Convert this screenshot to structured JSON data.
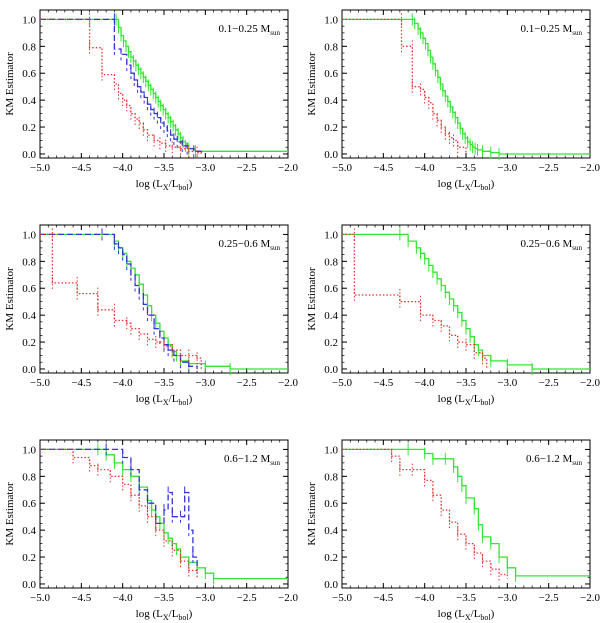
{
  "figure": {
    "panel_count": 6,
    "layout": "3 rows x 2 columns"
  },
  "colors": {
    "green": "#33e633",
    "blue": "#3333d9",
    "red": "#e63333",
    "axes": "#000000"
  },
  "chart_data": [
    {
      "type": "line",
      "panel": "row1-left",
      "annotation": "0.1−0.25 M",
      "annotation_sub": "sun",
      "xlabel": "log (L",
      "xlabel_sub1": "X",
      "xlabel_mid": "/L",
      "xlabel_sub2": "bol",
      "xlabel_end": ")",
      "ylabel": "KM Estimator",
      "xlim": [
        -5.0,
        -2.0
      ],
      "ylim": [
        -0.03,
        1.07
      ],
      "xticks": [
        "−5.0",
        "−4.5",
        "−4.0",
        "−3.5",
        "−3.0",
        "−2.5",
        "−2.0"
      ],
      "xtick_values": [
        -5.0,
        -4.5,
        -4.0,
        -3.5,
        -3.0,
        -2.5,
        -2.0
      ],
      "yticks": [
        "0.0",
        "0.2",
        "0.4",
        "0.6",
        "0.8",
        "1.0"
      ],
      "ytick_values": [
        0.0,
        0.2,
        0.4,
        0.6,
        0.8,
        1.0
      ],
      "series": [
        {
          "name": "green",
          "style": "solid",
          "color": "green",
          "x": [
            -5.0,
            -4.08,
            -4.05,
            -4.02,
            -3.99,
            -3.96,
            -3.93,
            -3.9,
            -3.87,
            -3.84,
            -3.81,
            -3.78,
            -3.75,
            -3.72,
            -3.69,
            -3.66,
            -3.63,
            -3.6,
            -3.57,
            -3.54,
            -3.51,
            -3.48,
            -3.45,
            -3.42,
            -3.39,
            -3.36,
            -3.33,
            -3.3,
            -3.27,
            -3.24,
            -3.2,
            -3.12,
            -2.0
          ],
          "y": [
            1.0,
            1.0,
            0.94,
            0.88,
            0.84,
            0.8,
            0.76,
            0.72,
            0.69,
            0.66,
            0.63,
            0.6,
            0.57,
            0.54,
            0.51,
            0.48,
            0.45,
            0.42,
            0.39,
            0.36,
            0.33,
            0.3,
            0.27,
            0.24,
            0.21,
            0.18,
            0.15,
            0.12,
            0.09,
            0.06,
            0.04,
            0.02,
            0.02
          ]
        },
        {
          "name": "blue",
          "style": "dashed",
          "color": "blue",
          "x": [
            -5.0,
            -4.1,
            -4.1,
            -4.02,
            -3.95,
            -3.9,
            -3.86,
            -3.82,
            -3.78,
            -3.74,
            -3.7,
            -3.66,
            -3.62,
            -3.58,
            -3.54,
            -3.5,
            -3.46,
            -3.42,
            -3.38,
            -3.34,
            -3.28,
            -3.22,
            -3.14,
            -3.05
          ],
          "y": [
            1.0,
            1.0,
            0.78,
            0.74,
            0.66,
            0.6,
            0.55,
            0.5,
            0.46,
            0.42,
            0.37,
            0.33,
            0.3,
            0.27,
            0.23,
            0.2,
            0.17,
            0.14,
            0.11,
            0.09,
            0.06,
            0.04,
            0.02,
            0.0
          ]
        },
        {
          "name": "red",
          "style": "dotted",
          "color": "red",
          "x": [
            -5.0,
            -4.4,
            -4.4,
            -4.25,
            -4.1,
            -4.05,
            -4.0,
            -3.95,
            -3.9,
            -3.85,
            -3.8,
            -3.75,
            -3.7,
            -3.62,
            -3.55,
            -3.48,
            -3.4,
            -3.3,
            -3.2,
            -3.1,
            -3.05
          ],
          "y": [
            1.0,
            1.0,
            0.79,
            0.59,
            0.52,
            0.45,
            0.4,
            0.36,
            0.3,
            0.26,
            0.23,
            0.18,
            0.14,
            0.1,
            0.08,
            0.06,
            0.05,
            0.04,
            0.02,
            0.01,
            0.0
          ]
        }
      ]
    },
    {
      "type": "line",
      "panel": "row1-right",
      "annotation": "0.1−0.25 M",
      "annotation_sub": "sun",
      "xlabel": "log (L",
      "xlabel_sub1": "X",
      "xlabel_mid": "/L",
      "xlabel_sub2": "bol",
      "xlabel_end": ")",
      "ylabel": "KM Estimator",
      "xlim": [
        -5.0,
        -2.0
      ],
      "ylim": [
        -0.03,
        1.07
      ],
      "xticks": [
        "−5.0",
        "−4.5",
        "−4.0",
        "−3.5",
        "−3.0",
        "−2.5",
        "−2.0"
      ],
      "xtick_values": [
        -5.0,
        -4.5,
        -4.0,
        -3.5,
        -3.0,
        -2.5,
        -2.0
      ],
      "yticks": [
        "0.0",
        "0.2",
        "0.4",
        "0.6",
        "0.8",
        "1.0"
      ],
      "ytick_values": [
        0.0,
        0.2,
        0.4,
        0.6,
        0.8,
        1.0
      ],
      "series": [
        {
          "name": "green",
          "style": "solid",
          "color": "green",
          "x": [
            -5.0,
            -4.15,
            -4.12,
            -4.08,
            -4.05,
            -4.02,
            -3.99,
            -3.96,
            -3.93,
            -3.9,
            -3.87,
            -3.84,
            -3.81,
            -3.78,
            -3.75,
            -3.72,
            -3.69,
            -3.66,
            -3.63,
            -3.6,
            -3.57,
            -3.54,
            -3.51,
            -3.48,
            -3.45,
            -3.42,
            -3.39,
            -3.36,
            -3.3,
            -3.2,
            -3.1,
            -2.0
          ],
          "y": [
            1.0,
            1.0,
            0.97,
            0.93,
            0.9,
            0.86,
            0.82,
            0.77,
            0.72,
            0.67,
            0.62,
            0.57,
            0.52,
            0.47,
            0.43,
            0.39,
            0.35,
            0.31,
            0.27,
            0.23,
            0.19,
            0.15,
            0.12,
            0.09,
            0.07,
            0.05,
            0.04,
            0.03,
            0.02,
            0.01,
            0.0,
            0.0
          ]
        },
        {
          "name": "red",
          "style": "dotted",
          "color": "red",
          "x": [
            -5.0,
            -4.28,
            -4.28,
            -4.15,
            -4.15,
            -4.05,
            -4.0,
            -3.95,
            -3.9,
            -3.85,
            -3.8,
            -3.75,
            -3.7,
            -3.65,
            -3.6,
            -3.5
          ],
          "y": [
            1.0,
            1.0,
            0.8,
            0.8,
            0.5,
            0.48,
            0.42,
            0.38,
            0.3,
            0.25,
            0.2,
            0.15,
            0.12,
            0.1,
            0.05,
            0.0
          ]
        }
      ]
    },
    {
      "type": "line",
      "panel": "row2-left",
      "annotation": "0.25−0.6 M",
      "annotation_sub": "sun",
      "xlabel": "log (L",
      "xlabel_sub1": "X",
      "xlabel_mid": "/L",
      "xlabel_sub2": "bol",
      "xlabel_end": ")",
      "ylabel": "KM Estimator",
      "xlim": [
        -5.0,
        -2.0
      ],
      "ylim": [
        -0.03,
        1.07
      ],
      "xticks": [
        "−5.0",
        "−4.5",
        "−4.0",
        "−3.5",
        "−3.0",
        "−2.5",
        "−2.0"
      ],
      "xtick_values": [
        -5.0,
        -4.5,
        -4.0,
        -3.5,
        -3.0,
        -2.5,
        -2.0
      ],
      "yticks": [
        "0.0",
        "0.2",
        "0.4",
        "0.6",
        "0.8",
        "1.0"
      ],
      "ytick_values": [
        0.0,
        0.2,
        0.4,
        0.6,
        0.8,
        1.0
      ],
      "series": [
        {
          "name": "green",
          "style": "solid",
          "color": "green",
          "x": [
            -5.0,
            -4.25,
            -4.1,
            -4.05,
            -4.0,
            -3.95,
            -3.9,
            -3.85,
            -3.8,
            -3.75,
            -3.7,
            -3.65,
            -3.6,
            -3.55,
            -3.5,
            -3.45,
            -3.4,
            -3.35,
            -3.3,
            -3.2,
            -3.0,
            -2.7,
            -2.0
          ],
          "y": [
            1.0,
            1.0,
            0.95,
            0.9,
            0.86,
            0.8,
            0.75,
            0.7,
            0.63,
            0.55,
            0.47,
            0.4,
            0.34,
            0.28,
            0.23,
            0.18,
            0.13,
            0.1,
            0.06,
            0.04,
            0.02,
            0.0,
            0.0
          ]
        },
        {
          "name": "blue",
          "style": "dashed",
          "color": "blue",
          "x": [
            -5.0,
            -4.25,
            -4.1,
            -4.05,
            -4.0,
            -3.95,
            -3.9,
            -3.85,
            -3.8,
            -3.75,
            -3.7,
            -3.62,
            -3.55,
            -3.5,
            -3.45,
            -3.38,
            -3.3,
            -3.2,
            -3.1
          ],
          "y": [
            1.0,
            1.0,
            0.93,
            0.9,
            0.85,
            0.78,
            0.7,
            0.62,
            0.56,
            0.48,
            0.4,
            0.3,
            0.23,
            0.18,
            0.14,
            0.1,
            0.05,
            0.02,
            0.0
          ]
        },
        {
          "name": "red",
          "style": "dotted",
          "color": "red",
          "x": [
            -5.0,
            -4.85,
            -4.85,
            -4.55,
            -4.55,
            -4.3,
            -4.3,
            -4.1,
            -4.1,
            -3.95,
            -3.9,
            -3.8,
            -3.7,
            -3.6,
            -3.5,
            -3.4,
            -3.3,
            -3.2,
            -3.1,
            -3.05
          ],
          "y": [
            1.0,
            1.0,
            0.64,
            0.64,
            0.56,
            0.56,
            0.44,
            0.44,
            0.36,
            0.34,
            0.3,
            0.26,
            0.22,
            0.2,
            0.17,
            0.14,
            0.1,
            0.1,
            0.08,
            0.0
          ]
        }
      ]
    },
    {
      "type": "line",
      "panel": "row2-right",
      "annotation": "0.25−0.6 M",
      "annotation_sub": "sun",
      "xlabel": "log (L",
      "xlabel_sub1": "X",
      "xlabel_mid": "/L",
      "xlabel_sub2": "bol",
      "xlabel_end": ")",
      "ylabel": "KM Estimator",
      "xlim": [
        -5.0,
        -2.0
      ],
      "ylim": [
        -0.03,
        1.07
      ],
      "xticks": [
        "−5.0",
        "−4.5",
        "−4.0",
        "−3.5",
        "−3.0",
        "−2.5",
        "−2.0"
      ],
      "xtick_values": [
        -5.0,
        -4.5,
        -4.0,
        -3.5,
        -3.0,
        -2.5,
        -2.0
      ],
      "yticks": [
        "0.0",
        "0.2",
        "0.4",
        "0.6",
        "0.8",
        "1.0"
      ],
      "ytick_values": [
        0.0,
        0.2,
        0.4,
        0.6,
        0.8,
        1.0
      ],
      "series": [
        {
          "name": "green",
          "style": "solid",
          "color": "green",
          "x": [
            -5.0,
            -4.3,
            -4.2,
            -4.1,
            -4.05,
            -4.0,
            -3.95,
            -3.9,
            -3.85,
            -3.8,
            -3.75,
            -3.7,
            -3.65,
            -3.6,
            -3.55,
            -3.5,
            -3.45,
            -3.4,
            -3.35,
            -3.3,
            -3.2,
            -3.0,
            -2.7,
            -2.0
          ],
          "y": [
            1.0,
            1.0,
            0.95,
            0.9,
            0.86,
            0.82,
            0.77,
            0.72,
            0.67,
            0.62,
            0.57,
            0.52,
            0.47,
            0.42,
            0.36,
            0.3,
            0.24,
            0.18,
            0.14,
            0.1,
            0.06,
            0.03,
            0.0,
            0.0
          ]
        },
        {
          "name": "red",
          "style": "dotted",
          "color": "red",
          "x": [
            -5.0,
            -4.85,
            -4.85,
            -4.3,
            -4.3,
            -4.05,
            -4.05,
            -3.9,
            -3.8,
            -3.7,
            -3.6,
            -3.5,
            -3.4,
            -3.3,
            -3.25
          ],
          "y": [
            1.0,
            1.0,
            0.55,
            0.55,
            0.5,
            0.5,
            0.4,
            0.36,
            0.32,
            0.25,
            0.2,
            0.18,
            0.12,
            0.08,
            0.0
          ]
        }
      ]
    },
    {
      "type": "line",
      "panel": "row3-left",
      "annotation": "0.6−1.2 M",
      "annotation_sub": "sun",
      "xlabel": "log (L",
      "xlabel_sub1": "X",
      "xlabel_mid": "/L",
      "xlabel_sub2": "bol",
      "xlabel_end": ")",
      "ylabel": "KM Estimator",
      "xlim": [
        -5.0,
        -2.0
      ],
      "ylim": [
        -0.03,
        1.07
      ],
      "xticks": [
        "−5.0",
        "−4.5",
        "−4.0",
        "−3.5",
        "−3.0",
        "−2.5",
        "−2.0"
      ],
      "xtick_values": [
        -5.0,
        -4.5,
        -4.0,
        -3.5,
        -3.0,
        -2.5,
        -2.0
      ],
      "yticks": [
        "0.0",
        "0.2",
        "0.4",
        "0.6",
        "0.8",
        "1.0"
      ],
      "ytick_values": [
        0.0,
        0.2,
        0.4,
        0.6,
        0.8,
        1.0
      ],
      "series": [
        {
          "name": "green",
          "style": "solid",
          "color": "green",
          "x": [
            -5.0,
            -4.3,
            -4.2,
            -4.1,
            -4.0,
            -3.9,
            -3.8,
            -3.7,
            -3.65,
            -3.6,
            -3.55,
            -3.5,
            -3.45,
            -3.4,
            -3.35,
            -3.3,
            -3.2,
            -3.1,
            -3.0,
            -2.9,
            -2.0
          ],
          "y": [
            1.0,
            1.0,
            0.96,
            0.9,
            0.85,
            0.8,
            0.72,
            0.62,
            0.55,
            0.5,
            0.45,
            0.38,
            0.34,
            0.3,
            0.26,
            0.2,
            0.16,
            0.12,
            0.08,
            0.04,
            0.04
          ]
        },
        {
          "name": "blue",
          "style": "dashed",
          "color": "blue",
          "x": [
            -5.0,
            -4.2,
            -4.0,
            -3.9,
            -3.8,
            -3.7,
            -3.6,
            -3.5,
            -3.45,
            -3.4,
            -3.3,
            -3.25,
            -3.2,
            -3.15,
            -3.1
          ],
          "y": [
            1.0,
            1.0,
            0.94,
            0.85,
            0.7,
            0.6,
            0.45,
            0.55,
            0.68,
            0.5,
            0.5,
            0.68,
            0.4,
            0.2,
            0.1
          ]
        },
        {
          "name": "red",
          "style": "dotted",
          "color": "red",
          "x": [
            -5.0,
            -4.6,
            -4.4,
            -4.3,
            -4.15,
            -4.0,
            -3.9,
            -3.8,
            -3.7,
            -3.6,
            -3.5,
            -3.4,
            -3.3,
            -3.2,
            -3.1
          ],
          "y": [
            1.0,
            0.94,
            0.88,
            0.85,
            0.8,
            0.74,
            0.66,
            0.58,
            0.5,
            0.4,
            0.32,
            0.25,
            0.17,
            0.1,
            0.04
          ]
        }
      ]
    },
    {
      "type": "line",
      "panel": "row3-right",
      "annotation": "0.6−1.2 M",
      "annotation_sub": "sun",
      "xlabel": "log (L",
      "xlabel_sub1": "X",
      "xlabel_mid": "/L",
      "xlabel_sub2": "bol",
      "xlabel_end": ")",
      "ylabel": "KM Estimator",
      "xlim": [
        -5.0,
        -2.0
      ],
      "ylim": [
        -0.03,
        1.07
      ],
      "xticks": [
        "−5.0",
        "−4.5",
        "−4.0",
        "−3.5",
        "−3.0",
        "−2.5",
        "−2.0"
      ],
      "xtick_values": [
        -5.0,
        -4.5,
        -4.0,
        -3.5,
        -3.0,
        -2.5,
        -2.0
      ],
      "yticks": [
        "0.0",
        "0.2",
        "0.4",
        "0.6",
        "0.8",
        "1.0"
      ],
      "ytick_values": [
        0.0,
        0.2,
        0.4,
        0.6,
        0.8,
        1.0
      ],
      "series": [
        {
          "name": "green",
          "style": "solid",
          "color": "green",
          "x": [
            -5.0,
            -4.2,
            -4.0,
            -3.9,
            -3.75,
            -3.65,
            -3.6,
            -3.55,
            -3.5,
            -3.4,
            -3.35,
            -3.3,
            -3.2,
            -3.1,
            -3.0,
            -2.9,
            -2.0
          ],
          "y": [
            1.0,
            1.0,
            0.97,
            0.93,
            0.93,
            0.87,
            0.8,
            0.73,
            0.64,
            0.56,
            0.44,
            0.35,
            0.3,
            0.2,
            0.12,
            0.06,
            0.06
          ]
        },
        {
          "name": "red",
          "style": "dotted",
          "color": "red",
          "x": [
            -5.0,
            -4.4,
            -4.3,
            -4.15,
            -4.0,
            -3.9,
            -3.8,
            -3.7,
            -3.6,
            -3.5,
            -3.4,
            -3.3,
            -3.2,
            -3.1,
            -3.0
          ],
          "y": [
            1.0,
            0.95,
            0.85,
            0.85,
            0.77,
            0.66,
            0.55,
            0.46,
            0.37,
            0.3,
            0.23,
            0.17,
            0.11,
            0.07,
            0.04
          ]
        }
      ]
    }
  ]
}
